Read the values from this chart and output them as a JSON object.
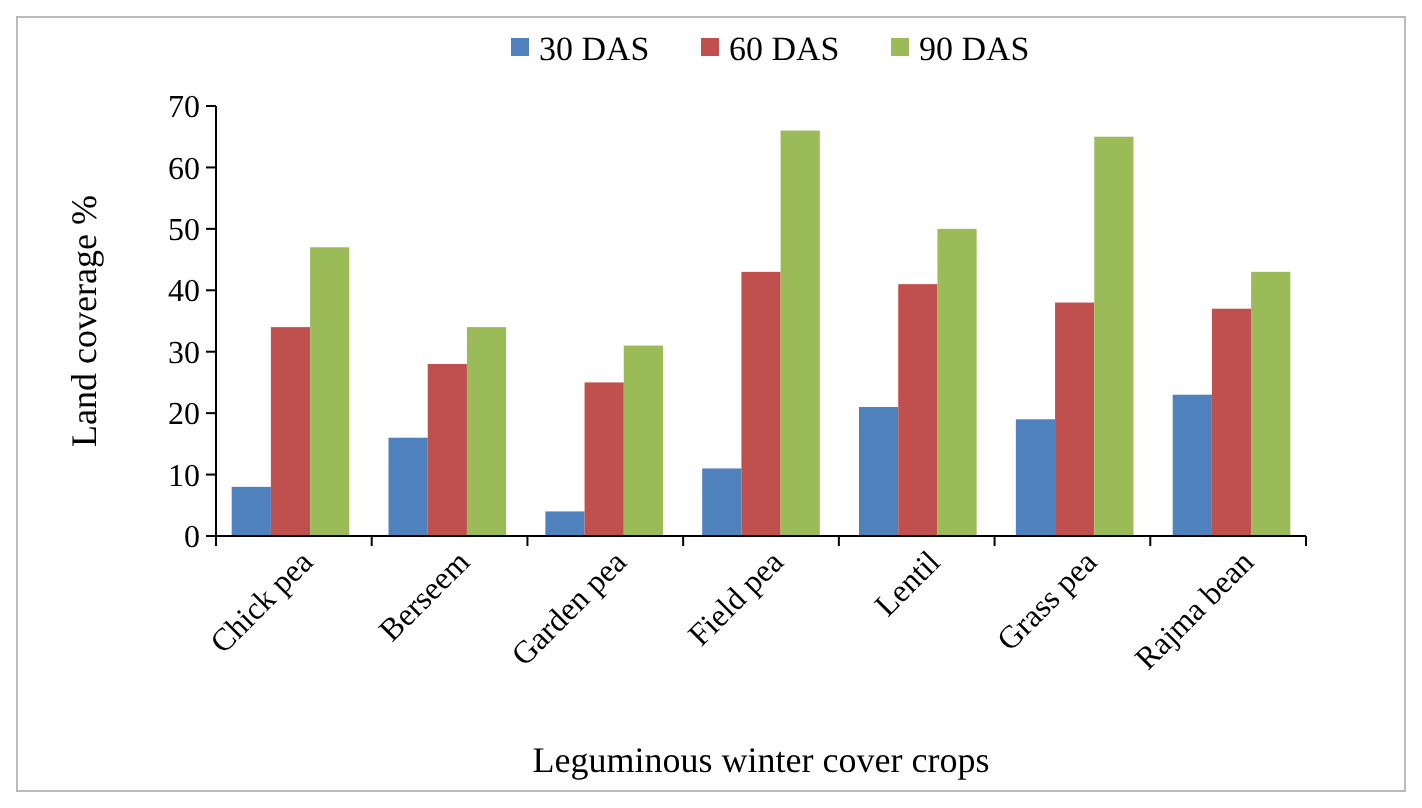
{
  "chart_data": {
    "type": "bar",
    "xlabel": "Leguminous winter cover crops",
    "ylabel": "Land coverage %",
    "categories": [
      "Chick pea",
      "Berseem",
      "Garden pea",
      "Field pea",
      "Lentil",
      "Grass pea",
      "Rajma bean"
    ],
    "series": [
      {
        "name": "30 DAS",
        "color": "#4f81bd",
        "values": [
          8,
          16,
          4,
          11,
          21,
          19,
          23
        ]
      },
      {
        "name": "60 DAS",
        "color": "#c0504d",
        "values": [
          34,
          28,
          25,
          43,
          41,
          38,
          37
        ]
      },
      {
        "name": "90 DAS",
        "color": "#9bbb59",
        "values": [
          47,
          34,
          31,
          66,
          50,
          65,
          43
        ]
      }
    ],
    "ylim": [
      0,
      70
    ],
    "yticks": [
      0,
      10,
      20,
      30,
      40,
      50,
      60,
      70
    ],
    "legend": "top",
    "grid": false
  }
}
